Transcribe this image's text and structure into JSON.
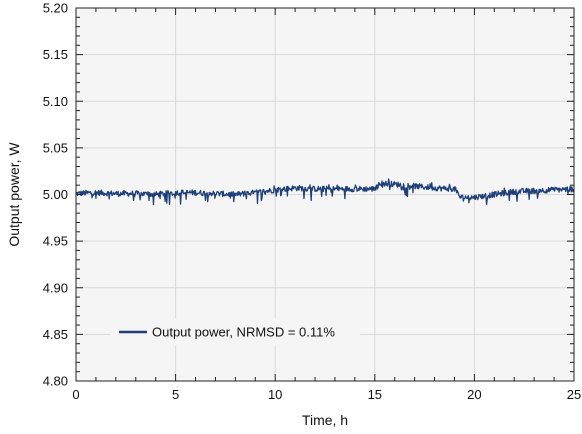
{
  "chart_data": {
    "type": "line",
    "title": "",
    "xlabel": "Time, h",
    "ylabel": "Output power, W",
    "xlim": [
      0,
      25
    ],
    "ylim": [
      4.8,
      5.2
    ],
    "x_ticks": [
      "0",
      "5",
      "10",
      "15",
      "20",
      "25"
    ],
    "y_ticks": [
      "4.80",
      "4.85",
      "4.90",
      "4.95",
      "5.00",
      "5.05",
      "5.10",
      "5.15",
      "5.20"
    ],
    "grid": true,
    "legend_position": "bottom-left",
    "series": [
      {
        "name": "Output power, NRMSD = 0.11%",
        "color": "#1f3f7a",
        "x": [
          0,
          1,
          2,
          3,
          4,
          5,
          6,
          7,
          8,
          9,
          10,
          11,
          12,
          13,
          14,
          15,
          15.3,
          16,
          17,
          18,
          19,
          19.3,
          20,
          21,
          22,
          23,
          24,
          25
        ],
        "y": [
          5.001,
          5.002,
          5.001,
          5.001,
          5.0,
          5.002,
          5.002,
          5.001,
          5.0,
          5.002,
          5.005,
          5.007,
          5.006,
          5.006,
          5.006,
          5.006,
          5.012,
          5.011,
          5.009,
          5.007,
          5.006,
          4.997,
          4.997,
          5.0,
          5.003,
          5.004,
          5.005,
          5.006
        ],
        "noise_amplitude": 0.003
      }
    ]
  }
}
